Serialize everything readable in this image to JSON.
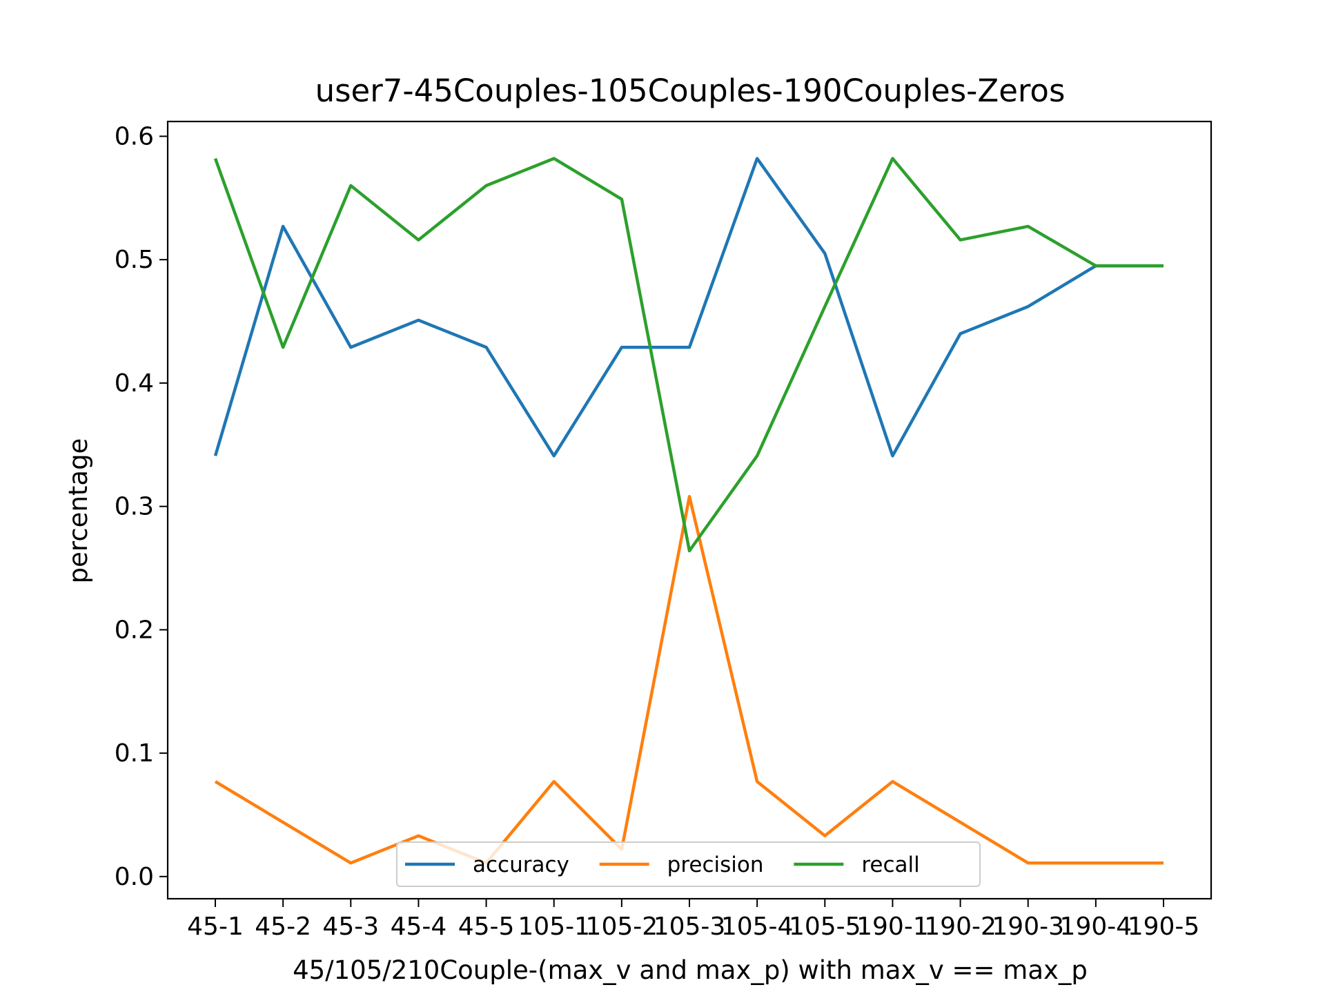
{
  "chart_data": {
    "type": "line",
    "title": "user7-45Couples-105Couples-190Couples-Zeros",
    "xlabel": "45/105/210Couple-(max_v and max_p) with max_v == max_p",
    "ylabel": "percentage",
    "categories": [
      "45-1",
      "45-2",
      "45-3",
      "45-4",
      "45-5",
      "105-1",
      "105-2",
      "105-3",
      "105-4",
      "105-5",
      "190-1",
      "190-2",
      "190-3",
      "190-4",
      "190-5"
    ],
    "y_ticks": [
      "0.0",
      "0.1",
      "0.2",
      "0.3",
      "0.4",
      "0.5",
      "0.6"
    ],
    "ylim": [
      -0.018,
      0.612
    ],
    "grid": false,
    "legend_position": "lower center",
    "series": [
      {
        "name": "accuracy",
        "color": "#1f77b4",
        "values": [
          0.341,
          0.527,
          0.429,
          0.451,
          0.429,
          0.341,
          0.429,
          0.429,
          0.582,
          0.505,
          0.341,
          0.44,
          0.462,
          0.495,
          0.495
        ]
      },
      {
        "name": "precision",
        "color": "#ff7f0e",
        "values": [
          0.077,
          0.044,
          0.011,
          0.033,
          0.011,
          0.077,
          0.022,
          0.308,
          0.077,
          0.033,
          0.077,
          0.044,
          0.011,
          0.011,
          0.011
        ]
      },
      {
        "name": "recall",
        "color": "#2ca02c",
        "values": [
          0.582,
          0.429,
          0.56,
          0.516,
          0.56,
          0.582,
          0.549,
          0.264,
          0.341,
          0.462,
          0.582,
          0.516,
          0.527,
          0.495,
          0.495
        ]
      }
    ]
  }
}
